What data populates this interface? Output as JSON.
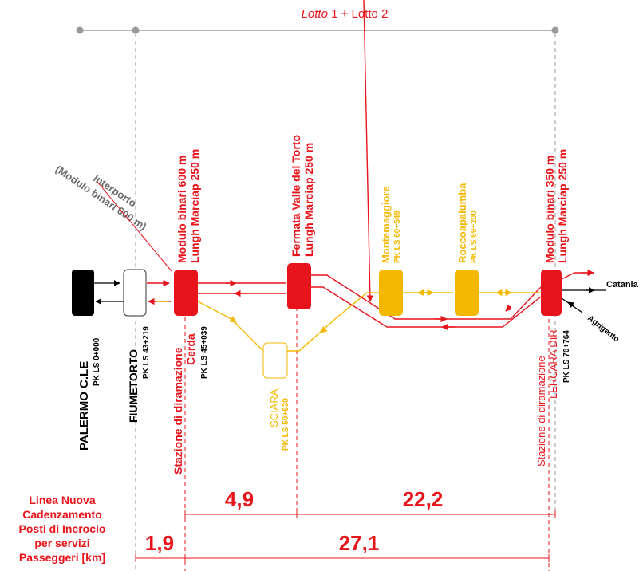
{
  "header": {
    "lotto_italic": "Lotto",
    "lotto_rest": " 1 + Lotto 2"
  },
  "interporto": {
    "line1": "Interporto",
    "line2": "(Modulo binari 600 m)"
  },
  "stations": {
    "palermo": {
      "name": "PALERMO C.LE",
      "pk": "PK LS 0+000"
    },
    "fiumetorto": {
      "name": "FIUMETORTO",
      "pk": "PK LS 43+219"
    },
    "cerda": {
      "line1": "Stazione di diramazione",
      "line2": "Cerda",
      "pk": "PK LS 45+039",
      "top1": "Modulo binari 600 m",
      "top2": "Lungh Marciap 250 m"
    },
    "sciara": {
      "name": "SCIARA",
      "pk": "PK LS 50+630"
    },
    "valle_torto": {
      "top1": "Fermata Valle del Torto",
      "top2": "Lungh Marciap 250 m"
    },
    "montemaggiore": {
      "name": "Montemaggiore",
      "pk": "PK LS 60+549"
    },
    "roccapalumba": {
      "name": "Roccoapalumba",
      "pk": "PK LS 69+200"
    },
    "lercara": {
      "line1": "Stazione di diramazione",
      "line2": "LERCARA DIR",
      "pk": "PK LS 76+764",
      "top1": "Modulo binari 350 m",
      "top2": "Lungh Marciap 250 m"
    }
  },
  "destinations": {
    "catania": "Catania",
    "agrigento": "Agrigento"
  },
  "legend": {
    "lines": [
      "Linea Nuova",
      "Cadenzamento",
      "Posti di Incrocio",
      "per servizi",
      "Passeggeri [km]"
    ]
  },
  "distances": {
    "d1": "1,9",
    "d2": "4,9",
    "d3": "22,2",
    "d4": "27,1"
  },
  "colors": {
    "red": "#e8141b",
    "yellow": "#f5b800",
    "black": "#000000",
    "gray": "#999999"
  }
}
